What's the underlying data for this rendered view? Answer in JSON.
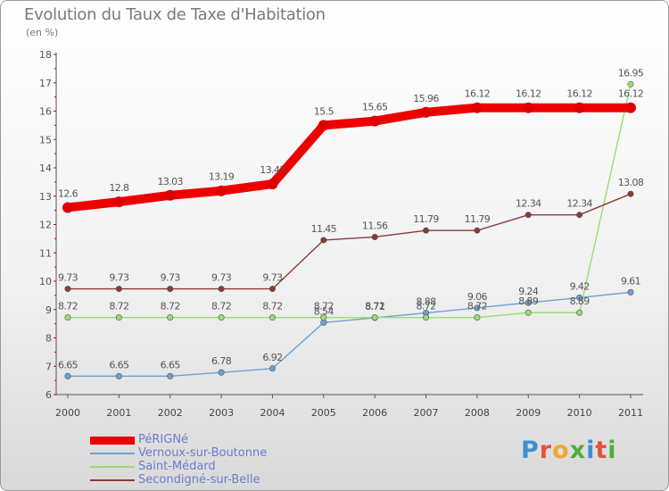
{
  "header": {
    "title": "Evolution du Taux de Taxe d'Habitation",
    "subtitle": "(en %)"
  },
  "logo": {
    "text": "Proxiti",
    "letter_colors": [
      "#3f8fd0",
      "#e8503a",
      "#f2a62a",
      "#4fae3b",
      "#3f8fd0",
      "#e8503a",
      "#4fae3b"
    ]
  },
  "chart_data": {
    "type": "line",
    "title": "Evolution du Taux de Taxe d'Habitation",
    "subtitle": "(en %)",
    "xlabel": "",
    "ylabel": "",
    "x": [
      "2000",
      "2001",
      "2002",
      "2003",
      "2004",
      "2005",
      "2006",
      "2007",
      "2008",
      "2009",
      "2010",
      "2011"
    ],
    "ylim": [
      6,
      18
    ],
    "yticks": [
      6,
      7,
      8,
      9,
      10,
      11,
      12,
      13,
      14,
      15,
      16,
      17,
      18
    ],
    "grid": false,
    "legend_position": "bottom-left",
    "series": [
      {
        "name": "PéRIGNé",
        "color": "#ee0000",
        "values": [
          12.6,
          12.8,
          13.03,
          13.19,
          13.43,
          15.5,
          15.65,
          15.96,
          16.12,
          16.12,
          16.12,
          16.12
        ],
        "labels": [
          "12.6",
          "12.8",
          "13.03",
          "13.19",
          "13.43",
          "15.5",
          "15.65",
          "15.96",
          "16.12",
          "16.12",
          "16.12",
          "16.12"
        ]
      },
      {
        "name": "Vernoux-sur-Boutonne",
        "color": "#6fa0d2",
        "values": [
          6.65,
          6.65,
          6.65,
          6.78,
          6.92,
          8.54,
          8.71,
          8.88,
          9.06,
          9.24,
          9.42,
          9.61
        ],
        "labels": [
          "6.65",
          "6.65",
          "6.65",
          "6.78",
          "6.92",
          "8.54",
          "8.71",
          "8.88",
          "9.06",
          "9.24",
          "9.42",
          "9.61"
        ]
      },
      {
        "name": "Saint-Médard",
        "color": "#99dd77",
        "values": [
          8.72,
          8.72,
          8.72,
          8.72,
          8.72,
          8.72,
          8.72,
          8.72,
          8.72,
          8.89,
          8.89,
          16.95
        ],
        "labels": [
          "8.72",
          "8.72",
          "8.72",
          "8.72",
          "8.72",
          "8.72",
          "8.72",
          "8.72",
          "8.72",
          "8.89",
          "8.89",
          "16.95"
        ]
      },
      {
        "name": "Secondigné-sur-Belle",
        "color": "#8b3a3a",
        "values": [
          9.73,
          9.73,
          9.73,
          9.73,
          9.73,
          11.45,
          11.56,
          11.79,
          11.79,
          12.34,
          12.34,
          13.08
        ],
        "labels": [
          "9.73",
          "9.73",
          "9.73",
          "9.73",
          "9.73",
          "11.45",
          "11.56",
          "11.79",
          "11.79",
          "12.34",
          "12.34",
          "13.08"
        ]
      }
    ]
  }
}
